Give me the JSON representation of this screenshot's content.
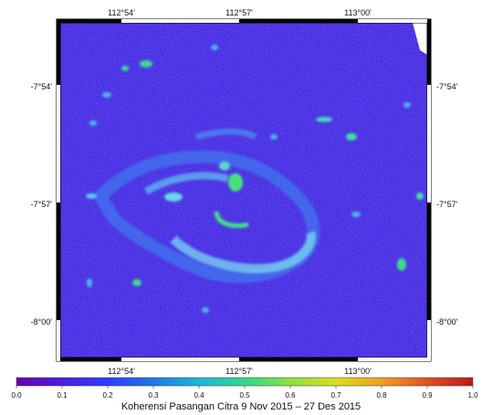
{
  "map": {
    "top_ticks": [
      "112°54'",
      "112°57'",
      "113°00'"
    ],
    "bottom_ticks": [
      "112°54'",
      "112°57'",
      "113°00'"
    ],
    "left_ticks": [
      "-7°54'",
      "-7°57'",
      "-8°00'"
    ],
    "right_ticks": [
      "-7°54'",
      "-7°57'",
      "-8°00'"
    ]
  },
  "colorbar": {
    "labels": [
      "0.0",
      "0.1",
      "0.2",
      "0.3",
      "0.4",
      "0.5",
      "0.6",
      "0.7",
      "0.8",
      "0.9",
      "1.0"
    ],
    "min": 0.0,
    "max": 1.0,
    "colors": [
      "#6a00b0",
      "#4b1fe0",
      "#2f3cff",
      "#1f78e8",
      "#18b8d8",
      "#30d890",
      "#8ee040",
      "#d8e020",
      "#f0a020",
      "#e05020",
      "#c01818"
    ]
  },
  "caption": "Koherensi Pasangan Citra 9 Nov 2015 – 27 Des 2015"
}
